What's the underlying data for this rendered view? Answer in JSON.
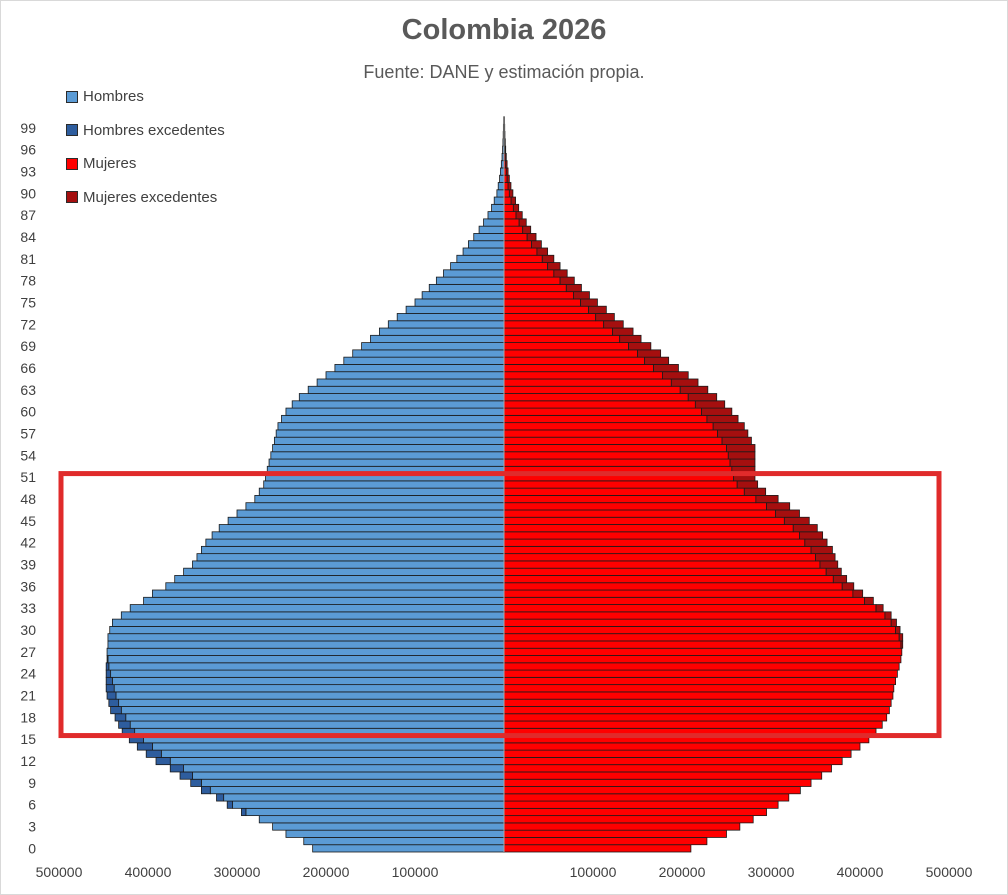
{
  "chart_data": {
    "type": "bar",
    "orientation": "horizontal",
    "subtype": "population-pyramid",
    "title": "Colombia 2026",
    "subtitle": "Fuente: DANE y estimación propia.",
    "xlabel": "",
    "ylabel": "",
    "xlim": [
      -500000,
      500000
    ],
    "x_ticks": [
      -500000,
      -400000,
      -300000,
      -200000,
      -100000,
      100000,
      200000,
      300000,
      400000,
      500000
    ],
    "x_tick_labels": [
      "500000",
      "400000",
      "300000",
      "200000",
      "100000",
      "100000",
      "200000",
      "300000",
      "400000",
      "500000"
    ],
    "y_ticks": [
      0,
      3,
      6,
      9,
      12,
      15,
      18,
      21,
      24,
      27,
      30,
      33,
      36,
      39,
      42,
      45,
      48,
      51,
      54,
      57,
      60,
      63,
      66,
      69,
      72,
      75,
      78,
      81,
      84,
      87,
      90,
      93,
      96,
      99
    ],
    "y_tick_labels": [
      "0",
      "3",
      "6",
      "9",
      "12",
      "15",
      "18",
      "21",
      "24",
      "27",
      "30",
      "33",
      "36",
      "39",
      "42",
      "45",
      "48",
      "51",
      "54",
      "57",
      "60",
      "63",
      "66",
      "69",
      "72",
      "75",
      "78",
      "81",
      "84",
      "87",
      "90",
      "93",
      "96",
      "99"
    ],
    "ages": [
      0,
      1,
      2,
      3,
      4,
      5,
      6,
      7,
      8,
      9,
      10,
      11,
      12,
      13,
      14,
      15,
      16,
      17,
      18,
      19,
      20,
      21,
      22,
      23,
      24,
      25,
      26,
      27,
      28,
      29,
      30,
      31,
      32,
      33,
      34,
      35,
      36,
      37,
      38,
      39,
      40,
      41,
      42,
      43,
      44,
      45,
      46,
      47,
      48,
      49,
      50,
      51,
      52,
      53,
      54,
      55,
      56,
      57,
      58,
      59,
      60,
      61,
      62,
      63,
      64,
      65,
      66,
      67,
      68,
      69,
      70,
      71,
      72,
      73,
      74,
      75,
      76,
      77,
      78,
      79,
      80,
      81,
      82,
      83,
      84,
      85,
      86,
      87,
      88,
      89,
      90,
      91,
      92,
      93,
      94,
      95,
      96,
      97,
      98,
      99,
      100
    ],
    "legend": [
      "Hombres",
      "Hombres excedentes",
      "Mujeres",
      "Mujeres excedentes"
    ],
    "legend_position": "top-left",
    "grid": false,
    "series": [
      {
        "name": "Hombres",
        "side": "left",
        "color": "#5b9bd5",
        "values": [
          215000,
          225000,
          245000,
          260000,
          275000,
          290000,
          305000,
          315000,
          330000,
          340000,
          350000,
          360000,
          375000,
          385000,
          395000,
          405000,
          415000,
          420000,
          425000,
          430000,
          433000,
          436000,
          438000,
          440000,
          442000,
          444000,
          445000,
          446000,
          445000,
          445000,
          443000,
          440000,
          430000,
          420000,
          405000,
          395000,
          380000,
          370000,
          360000,
          350000,
          345000,
          340000,
          335000,
          328000,
          320000,
          310000,
          300000,
          290000,
          280000,
          275000,
          270000,
          268000,
          266000,
          264000,
          262000,
          260000,
          258000,
          256000,
          254000,
          250000,
          245000,
          238000,
          230000,
          220000,
          210000,
          200000,
          190000,
          180000,
          170000,
          160000,
          150000,
          140000,
          130000,
          120000,
          110000,
          100000,
          92000,
          84000,
          76000,
          68000,
          60000,
          53000,
          46000,
          40000,
          34000,
          28000,
          23000,
          18000,
          14000,
          11000,
          8000,
          6500,
          5000,
          4000,
          3000,
          2200,
          1600,
          1200,
          900,
          700,
          500
        ]
      },
      {
        "name": "Hombres excedentes",
        "side": "left",
        "color": "#2e5d9e",
        "values": [
          0,
          0,
          0,
          0,
          0,
          5000,
          6000,
          8000,
          10000,
          12000,
          14000,
          15000,
          16000,
          17000,
          17000,
          16000,
          14000,
          13000,
          12000,
          12000,
          11000,
          10000,
          9000,
          7000,
          5000,
          3000,
          1000,
          0,
          0,
          0,
          0,
          0,
          0,
          0,
          0,
          0,
          0,
          0,
          0,
          0,
          0,
          0,
          0,
          0,
          0,
          0,
          0,
          0,
          0,
          0,
          0,
          0,
          0,
          0,
          0,
          0,
          0,
          0,
          0,
          0,
          0,
          0,
          0,
          0,
          0,
          0,
          0,
          0,
          0,
          0,
          0,
          0,
          0,
          0,
          0,
          0,
          0,
          0,
          0,
          0,
          0,
          0,
          0,
          0,
          0,
          0,
          0,
          0,
          0,
          0,
          0,
          0,
          0,
          0,
          0,
          0,
          0,
          0,
          0,
          0,
          0
        ]
      },
      {
        "name": "Mujeres",
        "side": "right",
        "color": "#ff0000",
        "values": [
          210000,
          228000,
          250000,
          265000,
          280000,
          295000,
          308000,
          320000,
          333000,
          345000,
          357000,
          368000,
          380000,
          390000,
          400000,
          410000,
          418000,
          425000,
          430000,
          433000,
          435000,
          437000,
          438000,
          440000,
          442000,
          444000,
          446000,
          447000,
          446000,
          444000,
          440000,
          435000,
          428000,
          418000,
          405000,
          392000,
          380000,
          370000,
          362000,
          355000,
          350000,
          345000,
          338000,
          332000,
          325000,
          315000,
          305000,
          295000,
          283000,
          270000,
          262000,
          258000,
          256000,
          254000,
          252000,
          250000,
          245000,
          240000,
          235000,
          228000,
          222000,
          215000,
          207000,
          198000,
          188000,
          178000,
          168000,
          158000,
          150000,
          140000,
          130000,
          122000,
          112000,
          103000,
          95000,
          86000,
          78000,
          70000,
          63000,
          56000,
          49000,
          43000,
          37000,
          31000,
          26000,
          21000,
          17000,
          13500,
          10500,
          8000,
          6000,
          4600,
          3500,
          2600,
          1900,
          1400,
          1000,
          750,
          550,
          400,
          300
        ]
      },
      {
        "name": "Mujeres excedentes",
        "side": "right",
        "color": "#a50f0f",
        "values": [
          0,
          0,
          0,
          0,
          0,
          0,
          0,
          0,
          0,
          0,
          0,
          0,
          0,
          0,
          0,
          0,
          0,
          0,
          0,
          0,
          0,
          0,
          0,
          0,
          0,
          0,
          0,
          0,
          2000,
          4000,
          5000,
          6000,
          7000,
          8000,
          10000,
          11000,
          13000,
          15000,
          17000,
          20000,
          22000,
          24000,
          25000,
          26000,
          27000,
          28000,
          27000,
          26000,
          25000,
          24000,
          23000,
          24000,
          26000,
          28000,
          30000,
          32000,
          33000,
          34000,
          35000,
          35000,
          34000,
          33000,
          32000,
          31000,
          30000,
          29000,
          28000,
          27000,
          26000,
          25000,
          24000,
          23000,
          22000,
          21000,
          20000,
          19000,
          18000,
          17000,
          16000,
          15000,
          14000,
          13000,
          12000,
          11000,
          10000,
          9000,
          8000,
          7000,
          6000,
          5000,
          4000,
          3200,
          2500,
          2000,
          1600,
          1200,
          900,
          700,
          500,
          400,
          300
        ]
      }
    ]
  },
  "highlight": {
    "age_range": [
      16,
      51
    ],
    "color": "#e02b2b"
  }
}
